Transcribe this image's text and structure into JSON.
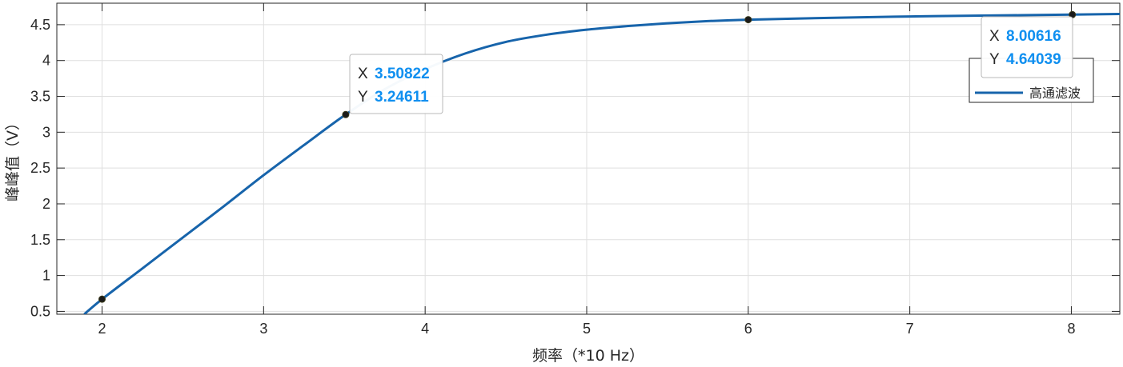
{
  "chart_data": {
    "type": "line",
    "xlabel": "频率（*10 Hz）",
    "ylabel": "峰峰值（V）",
    "xlim": [
      1.72,
      8.3
    ],
    "ylim": [
      0.46,
      4.8
    ],
    "x_ticks": [
      2,
      3,
      4,
      5,
      6,
      7,
      8
    ],
    "y_ticks": [
      0.5,
      1,
      1.5,
      2,
      2.5,
      3,
      3.5,
      4,
      4.5
    ],
    "grid": true,
    "legend_position": "top-right",
    "series": [
      {
        "name": "高通滤波",
        "color": "#1764ab",
        "x": [
          1.89,
          2.0,
          2.25,
          2.5,
          2.75,
          3.0,
          3.25,
          3.508,
          3.75,
          4.0,
          4.25,
          4.5,
          4.75,
          5.0,
          5.25,
          5.5,
          5.75,
          6.0,
          6.5,
          7.0,
          7.5,
          8.006,
          8.3
        ],
        "y": [
          0.46,
          0.67,
          1.1,
          1.53,
          1.96,
          2.4,
          2.82,
          3.246,
          3.6,
          3.88,
          4.1,
          4.26,
          4.36,
          4.43,
          4.48,
          4.52,
          4.55,
          4.57,
          4.595,
          4.615,
          4.628,
          4.6404,
          4.65
        ]
      }
    ],
    "markers": [
      {
        "x": 2.0,
        "y": 0.67
      },
      {
        "x": 3.50822,
        "y": 3.24611
      },
      {
        "x": 6.0,
        "y": 4.57
      },
      {
        "x": 8.00616,
        "y": 4.64039
      }
    ],
    "datatips": [
      {
        "x_key": "X",
        "y_key": "Y",
        "x_text": "3.50822",
        "y_text": "3.24611",
        "x": 3.50822,
        "y": 3.24611
      },
      {
        "x_key": "X",
        "y_key": "Y",
        "x_text": "8.00616",
        "y_text": "4.64039",
        "x": 8.00616,
        "y": 4.64039
      }
    ]
  }
}
